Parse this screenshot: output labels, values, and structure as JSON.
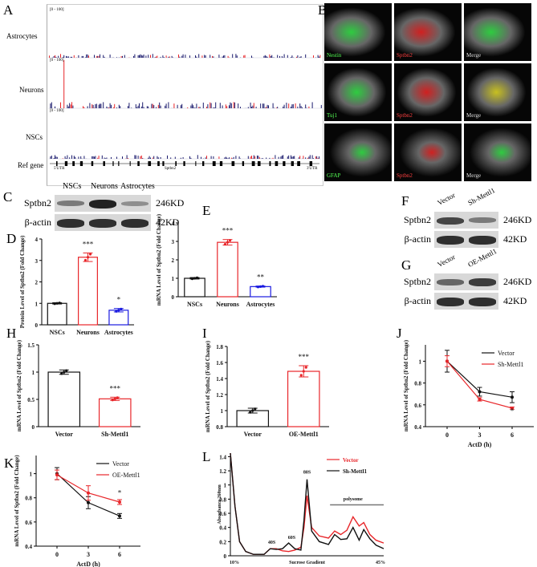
{
  "panel_labels": {
    "A": "A",
    "B": "B",
    "C": "C",
    "D": "D",
    "E": "E",
    "F": "F",
    "G": "G",
    "H": "H",
    "I": "I",
    "J": "J",
    "K": "K",
    "L": "L"
  },
  "panel_A": {
    "tracks": [
      "Astrocytes",
      "Neurons",
      "NSCs"
    ],
    "range": "[0 - 100]",
    "ref_label": "Ref gene",
    "utr5": "5'UTR",
    "gene": "Sptbn2",
    "utr3": "3'UTR"
  },
  "panel_B": {
    "rows": [
      [
        "Nestin",
        "Sptbn2",
        "Merge"
      ],
      [
        "Tuj1",
        "Sptbn2",
        "Merge"
      ],
      [
        "GFAP",
        "Sptbn2",
        "Merge"
      ]
    ]
  },
  "panel_C": {
    "lanes": [
      "NSCs",
      "Neurons",
      "Astrocytes"
    ],
    "rows": [
      "Sptbn2",
      "β-actin"
    ],
    "sizes": [
      "246KD",
      "42KD"
    ]
  },
  "panel_F": {
    "lanes": [
      "Vector",
      "Sh-Mettl1"
    ],
    "rows": [
      "Sptbn2",
      "β-actin"
    ],
    "sizes": [
      "246KD",
      "42KD"
    ]
  },
  "panel_G": {
    "lanes": [
      "Vector",
      "OE-Mettl1"
    ],
    "rows": [
      "Sptbn2",
      "β-actin"
    ],
    "sizes": [
      "246KD",
      "42KD"
    ]
  },
  "colors": {
    "black": "#111111",
    "red": "#e8262a",
    "blue": "#1a1ae0"
  },
  "chart_data": [
    {
      "id": "D",
      "type": "bar",
      "categories": [
        "NSCs",
        "Neurons",
        "Astrocytes"
      ],
      "values": [
        1.0,
        3.15,
        0.68
      ],
      "errors": [
        0.03,
        0.2,
        0.08
      ],
      "colors": [
        "#111111",
        "#e8262a",
        "#1a1ae0"
      ],
      "sig": [
        "",
        "***",
        "*"
      ],
      "ylabel": "Protein Level of Sptbn2 (Fold Change)",
      "ylim": [
        0,
        4
      ],
      "ticks": [
        0,
        1,
        2,
        3,
        4
      ]
    },
    {
      "id": "E",
      "type": "bar",
      "categories": [
        "NSCs",
        "Neurons",
        "Astrocytes"
      ],
      "values": [
        1.0,
        2.95,
        0.55
      ],
      "errors": [
        0.04,
        0.15,
        0.03
      ],
      "colors": [
        "#111111",
        "#e8262a",
        "#1a1ae0"
      ],
      "sig": [
        "",
        "***",
        "**"
      ],
      "ylabel": "mRNA Level of Sptbn2 (Fold Change)",
      "ylim": [
        0,
        4
      ],
      "ticks": [
        0,
        1,
        2,
        3,
        4
      ]
    },
    {
      "id": "H",
      "type": "bar",
      "categories": [
        "Vector",
        "Sh-Mettl1"
      ],
      "values": [
        1.0,
        0.51
      ],
      "errors": [
        0.04,
        0.03
      ],
      "colors": [
        "#111111",
        "#e8262a"
      ],
      "sig": [
        "",
        "***"
      ],
      "ylabel": "mRNA Level of Sptbn2 (Fold Change)",
      "ylim": [
        0,
        1.5
      ],
      "ticks": [
        0,
        0.5,
        1.0,
        1.5
      ]
    },
    {
      "id": "I",
      "type": "bar",
      "categories": [
        "Vector",
        "OE-Mettl1"
      ],
      "values": [
        1.0,
        1.49
      ],
      "errors": [
        0.03,
        0.07
      ],
      "colors": [
        "#111111",
        "#e8262a"
      ],
      "sig": [
        "",
        "***"
      ],
      "ylabel": "mRNA Level of Sptbn2 (Fold Change)",
      "ylim": [
        0.8,
        1.8
      ],
      "ticks": [
        0.8,
        1.0,
        1.2,
        1.4,
        1.6,
        1.8
      ]
    },
    {
      "id": "J",
      "type": "line",
      "x": [
        0,
        3,
        6
      ],
      "series": [
        {
          "name": "Vector",
          "values": [
            1.0,
            0.72,
            0.67
          ],
          "errors": [
            0.1,
            0.04,
            0.05
          ],
          "color": "#111111"
        },
        {
          "name": "Sh-Mettl1",
          "values": [
            1.0,
            0.65,
            0.57
          ],
          "errors": [
            0.05,
            0.015,
            0.01
          ],
          "color": "#e8262a"
        }
      ],
      "sig": "*",
      "xlabel": "ActD (h)",
      "ylabel": "mRNA Level of Sptbn2 (Fold Change)",
      "ylim": [
        0.4,
        1.15
      ],
      "ticks": [
        0.4,
        0.6,
        0.8,
        1.0
      ],
      "legend": "top-right"
    },
    {
      "id": "K",
      "type": "line",
      "x": [
        0,
        3,
        6
      ],
      "series": [
        {
          "name": "Vector",
          "values": [
            1.0,
            0.76,
            0.65
          ],
          "errors": [
            0.05,
            0.05,
            0.02
          ],
          "color": "#111111"
        },
        {
          "name": "OE-Mettl1",
          "values": [
            0.99,
            0.84,
            0.765
          ],
          "errors": [
            0.04,
            0.06,
            0.02
          ],
          "color": "#e8262a"
        }
      ],
      "sig": "*",
      "xlabel": "ActD (h)",
      "ylabel": "mRNA Level of Sptbn2 (Fold Change)",
      "ylim": [
        0.4,
        1.15
      ],
      "ticks": [
        0.4,
        0.6,
        0.8,
        1.0
      ],
      "legend": "top-right"
    },
    {
      "id": "L",
      "type": "line",
      "xlabel": "Sucrose Gradient",
      "xstart": "10%",
      "xend": "45%",
      "ylabel": "Absorbance 260nm",
      "ylim": [
        0,
        1.45
      ],
      "ticks": [
        0,
        0.2,
        0.4,
        0.6,
        0.8,
        1,
        1.2,
        1.4
      ],
      "annotations": [
        "40S",
        "60S",
        "80S",
        "polysome"
      ],
      "legend": "top-right",
      "x": [
        0,
        3,
        6,
        10,
        15,
        22,
        26,
        30,
        34,
        38,
        42,
        46,
        48,
        50,
        53,
        58,
        64,
        68,
        72,
        76,
        80,
        84,
        87,
        91,
        95,
        100
      ],
      "series": [
        {
          "name": "Vector",
          "color": "#e8262a",
          "values": [
            1.5,
            0.7,
            0.2,
            0.06,
            0.02,
            0.02,
            0.1,
            0.1,
            0.07,
            0.06,
            0.08,
            0.12,
            0.4,
            0.85,
            0.4,
            0.28,
            0.25,
            0.35,
            0.3,
            0.36,
            0.55,
            0.42,
            0.47,
            0.3,
            0.22,
            0.18
          ]
        },
        {
          "name": "Sh-Mettl1",
          "color": "#111111",
          "values": [
            1.5,
            0.7,
            0.2,
            0.06,
            0.02,
            0.02,
            0.1,
            0.09,
            0.1,
            0.18,
            0.1,
            0.08,
            0.5,
            1.08,
            0.35,
            0.2,
            0.16,
            0.3,
            0.23,
            0.24,
            0.4,
            0.22,
            0.37,
            0.24,
            0.15,
            0.1
          ]
        }
      ]
    }
  ]
}
